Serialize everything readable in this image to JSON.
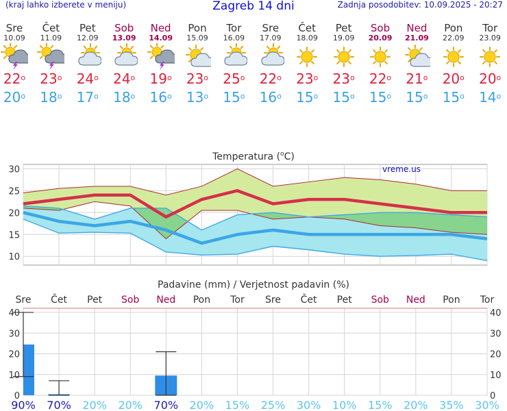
{
  "header": {
    "left_note": "(kraj lahko izberete v meniju)",
    "title": "Zagreb 14 dni",
    "updated": "Zadnja posodobitev: 10.09.2025 - 20:27"
  },
  "days": [
    {
      "name": "Sre",
      "date": "10.09",
      "weekend": false,
      "icon": "thunderstorm-icon",
      "tmax": "22",
      "tmin": "20"
    },
    {
      "name": "Čet",
      "date": "11.09",
      "weekend": false,
      "icon": "thunderstorm-icon",
      "tmax": "23",
      "tmin": "18"
    },
    {
      "name": "Pet",
      "date": "12.09",
      "weekend": false,
      "icon": "partly-cloudy-icon",
      "tmax": "24",
      "tmin": "17"
    },
    {
      "name": "Sob",
      "date": "13.09",
      "weekend": true,
      "icon": "partly-cloudy-icon",
      "tmax": "24",
      "tmin": "18"
    },
    {
      "name": "Ned",
      "date": "14.09",
      "weekend": true,
      "icon": "thunderstorm-icon",
      "tmax": "19",
      "tmin": "16"
    },
    {
      "name": "Pon",
      "date": "15.09",
      "weekend": false,
      "icon": "mostly-sunny-icon",
      "tmax": "23",
      "tmin": "13"
    },
    {
      "name": "Tor",
      "date": "16.09",
      "weekend": false,
      "icon": "partly-cloudy-icon",
      "tmax": "25",
      "tmin": "15"
    },
    {
      "name": "Sre",
      "date": "17.09",
      "weekend": false,
      "icon": "partly-cloudy-icon",
      "tmax": "22",
      "tmin": "16"
    },
    {
      "name": "Čet",
      "date": "18.09",
      "weekend": false,
      "icon": "sunny-icon",
      "tmax": "23",
      "tmin": "15"
    },
    {
      "name": "Pet",
      "date": "19.09",
      "weekend": false,
      "icon": "sunny-icon",
      "tmax": "23",
      "tmin": "15"
    },
    {
      "name": "Sob",
      "date": "20.09",
      "weekend": true,
      "icon": "sunny-icon",
      "tmax": "22",
      "tmin": "15"
    },
    {
      "name": "Ned",
      "date": "21.09",
      "weekend": true,
      "icon": "mostly-sunny-icon",
      "tmax": "21",
      "tmin": "15"
    },
    {
      "name": "Pon",
      "date": "22.09",
      "weekend": false,
      "icon": "sunny-icon",
      "tmax": "20",
      "tmin": "15"
    },
    {
      "name": "Tor",
      "date": "23.09",
      "weekend": false,
      "icon": "sunny-icon",
      "tmax": "20",
      "tmin": "14"
    }
  ],
  "degree_symbol": "o",
  "colors": {
    "max": "#d5304a",
    "min": "#3ba6e6",
    "max_band": "#d4eb9e",
    "min_band": "#a6e6ef",
    "overlap": "#86d48e",
    "precip_bar": "#2e8ee6",
    "weekend": "#a0004f"
  },
  "chart_data": [
    {
      "type": "line",
      "title": "Temperatura (°C)",
      "title_text": "Temperatura (",
      "title_unit": "C)",
      "watermark": "vreme.us",
      "x": [
        "10.09",
        "11.09",
        "12.09",
        "13.09",
        "14.09",
        "15.09",
        "16.09",
        "17.09",
        "18.09",
        "19.09",
        "20.09",
        "21.09",
        "22.09",
        "23.09"
      ],
      "ylim": [
        8,
        31
      ],
      "yticks": [
        10,
        15,
        20,
        25,
        30
      ],
      "grid": true,
      "series": [
        {
          "id": "tmax",
          "values": [
            22,
            23,
            24,
            24,
            19,
            23,
            25,
            22,
            23,
            23,
            22,
            21,
            20,
            20
          ]
        },
        {
          "id": "tmin",
          "values": [
            20,
            18,
            17,
            18,
            16,
            13,
            15,
            16,
            15,
            15,
            15,
            15,
            15,
            14
          ]
        },
        {
          "id": "tmax_high",
          "values": [
            24.5,
            25.5,
            26,
            26,
            24,
            26,
            30,
            26,
            27,
            28,
            27.5,
            26.5,
            25,
            25
          ]
        },
        {
          "id": "tmax_low",
          "values": [
            21,
            20.5,
            22.5,
            21.5,
            14,
            20.5,
            20.5,
            18.5,
            19,
            18.5,
            17,
            16.5,
            15.5,
            15
          ]
        },
        {
          "id": "tmin_high",
          "values": [
            21.5,
            21,
            18.5,
            21,
            21,
            16,
            19.5,
            20,
            19,
            19.5,
            20,
            20,
            19.5,
            19
          ]
        },
        {
          "id": "tmin_low",
          "values": [
            18.5,
            15.3,
            15.5,
            15.3,
            11,
            10.3,
            10.5,
            12.3,
            11.5,
            10.5,
            10,
            10.2,
            10.5,
            9
          ]
        }
      ]
    },
    {
      "type": "bar",
      "title": "Padavine (mm) / Verjetnost padavin (%)",
      "categories": [
        "Sre",
        "Čet",
        "Pet",
        "Sob",
        "Ned",
        "Pon",
        "Tor",
        "Sre",
        "Čet",
        "Pet",
        "Sob",
        "Ned",
        "Pon",
        "Tor"
      ],
      "weekend": [
        false,
        false,
        false,
        true,
        true,
        false,
        false,
        false,
        false,
        false,
        true,
        true,
        false,
        false
      ],
      "values": [
        24.5,
        0.5,
        0,
        0,
        9.5,
        0,
        0,
        0,
        0,
        0,
        0,
        0,
        0,
        0
      ],
      "error_high": [
        40,
        7,
        null,
        null,
        21,
        null,
        null,
        null,
        null,
        null,
        null,
        null,
        null,
        null
      ],
      "error_low": [
        9,
        0,
        null,
        null,
        0,
        null,
        null,
        null,
        null,
        null,
        null,
        null,
        null,
        null
      ],
      "probability": [
        "90%",
        "70%",
        "20%",
        "20%",
        "70%",
        "20%",
        "15%",
        "25%",
        "30%",
        "10%",
        "15%",
        "20%",
        "35%",
        "30%"
      ],
      "probability_strong": [
        true,
        true,
        false,
        false,
        true,
        false,
        false,
        false,
        false,
        false,
        false,
        false,
        false,
        false
      ],
      "ylim": [
        0,
        42
      ],
      "yticks": [
        0,
        10,
        20,
        30,
        40
      ],
      "grid": true
    }
  ]
}
